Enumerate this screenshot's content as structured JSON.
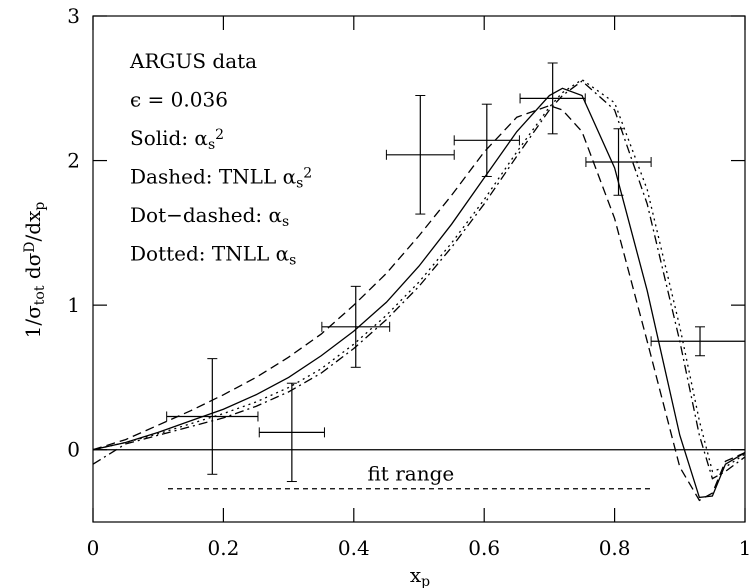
{
  "chart_data": {
    "type": "line",
    "xlim": [
      0,
      1
    ],
    "ylim": [
      -0.5,
      3
    ],
    "xticks": [
      0,
      0.2,
      0.4,
      0.6,
      0.8,
      1
    ],
    "yticks": [
      0,
      1,
      2,
      3
    ],
    "xlabel": [
      {
        "t": "x"
      },
      {
        "sub": "p"
      }
    ],
    "ylabel": [
      {
        "t": "1/σ"
      },
      {
        "sub": "tot"
      },
      {
        "t": "  dσ"
      },
      {
        "sup": "D"
      },
      {
        "t": "/dx"
      },
      {
        "sub": "p"
      }
    ],
    "annotations": [
      [
        {
          "t": "ARGUS data"
        }
      ],
      [
        {
          "t": "ϵ = 0.036"
        }
      ],
      [
        {
          "t": "Solid: α"
        },
        {
          "sub": "s"
        },
        {
          "sup": "2"
        }
      ],
      [
        {
          "t": "Dashed: TNLL α"
        },
        {
          "sub": "s"
        },
        {
          "sup": "2"
        }
      ],
      [
        {
          "t": "Dot−dashed: α"
        },
        {
          "sub": "s"
        }
      ],
      [
        {
          "t": "Dotted: TNLL α"
        },
        {
          "sub": "s"
        }
      ]
    ],
    "hline": 0,
    "fit_range": {
      "label": "fit range",
      "x": [
        0.115,
        0.86
      ],
      "y": -0.27
    },
    "x": [
      0,
      0.05,
      0.1,
      0.15,
      0.2,
      0.25,
      0.3,
      0.35,
      0.4,
      0.45,
      0.5,
      0.55,
      0.6,
      0.65,
      0.7,
      0.72,
      0.75,
      0.8,
      0.85,
      0.9,
      0.93,
      0.95,
      0.97,
      1.0
    ],
    "series": [
      {
        "style": "solid",
        "color": "#000000",
        "values": [
          0,
          0.05,
          0.12,
          0.2,
          0.28,
          0.38,
          0.5,
          0.65,
          0.82,
          1.02,
          1.27,
          1.56,
          1.88,
          2.2,
          2.45,
          2.5,
          2.45,
          1.95,
          1.1,
          0.1,
          -0.33,
          -0.32,
          -0.1,
          -0.02
        ]
      },
      {
        "style": "dashed",
        "color": "#000000",
        "values": [
          0,
          0.07,
          0.17,
          0.27,
          0.38,
          0.5,
          0.64,
          0.8,
          1.0,
          1.22,
          1.48,
          1.76,
          2.06,
          2.3,
          2.38,
          2.35,
          2.2,
          1.6,
          0.75,
          -0.12,
          -0.35,
          -0.3,
          -0.08,
          -0.02
        ]
      },
      {
        "style": "dot-dashed",
        "color": "#000000",
        "values": [
          -0.1,
          0.04,
          0.1,
          0.16,
          0.22,
          0.3,
          0.4,
          0.53,
          0.7,
          0.9,
          1.13,
          1.4,
          1.7,
          2.03,
          2.35,
          2.45,
          2.55,
          2.35,
          1.7,
          0.75,
          0.1,
          -0.2,
          -0.15,
          -0.05
        ]
      },
      {
        "style": "dotted",
        "color": "#000000",
        "values": [
          0,
          0.05,
          0.11,
          0.18,
          0.25,
          0.33,
          0.43,
          0.56,
          0.73,
          0.93,
          1.16,
          1.43,
          1.73,
          2.06,
          2.37,
          2.47,
          2.56,
          2.4,
          1.8,
          0.85,
          0.2,
          -0.15,
          -0.12,
          -0.03
        ]
      }
    ],
    "points": {
      "color": "#000000",
      "x": [
        0.183,
        0.305,
        0.403,
        0.502,
        0.604,
        0.705,
        0.806,
        0.931
      ],
      "xerr": [
        0.07,
        0.05,
        0.052,
        0.052,
        0.05,
        0.05,
        0.05,
        0.075
      ],
      "values": [
        0.23,
        0.12,
        0.85,
        2.04,
        2.14,
        2.43,
        1.99,
        0.75
      ],
      "yerr": [
        0.4,
        0.34,
        0.28,
        0.41,
        0.25,
        0.245,
        0.23,
        0.1
      ]
    }
  }
}
